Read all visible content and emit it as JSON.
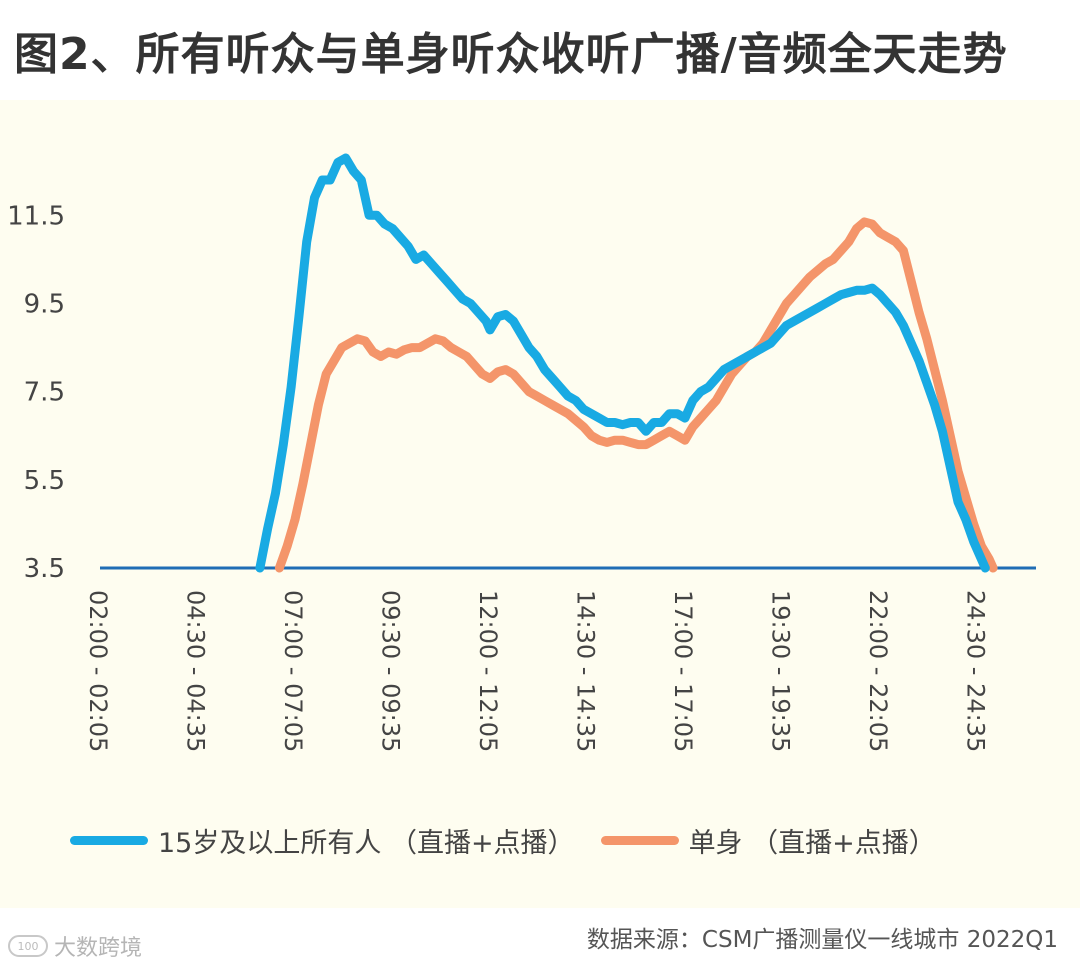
{
  "chart_data": {
    "type": "line",
    "title": "图2、所有听众与单身听众收听广播/音频全天走势",
    "xlabel": "",
    "ylabel": "",
    "ylim": [
      3.5,
      12.8
    ],
    "yticks": [
      "11.5",
      "9.5",
      "7.5",
      "5.5",
      "3.5"
    ],
    "ytick_values": [
      11.5,
      9.5,
      7.5,
      5.5,
      3.5
    ],
    "x_range": [
      2.0,
      26.0
    ],
    "x_tick_labels": [
      "02:00 - 02:05",
      "04:30 - 04:35",
      "07:00 - 07:05",
      "09:30 - 09:35",
      "12:00 - 12:05",
      "14:30 - 14:35",
      "17:00 - 17:05",
      "19:30 - 19:35",
      "22:00 - 22:05",
      "24:30 - 24:35"
    ],
    "x_tick_values": [
      2.0,
      4.5,
      7.0,
      9.5,
      12.0,
      14.5,
      17.0,
      19.5,
      22.0,
      24.5
    ],
    "series": [
      {
        "name": "15岁及以上所有人 （直播+点播）",
        "color": "#19aae3",
        "points": [
          [
            6.1,
            3.5
          ],
          [
            6.3,
            4.4
          ],
          [
            6.5,
            5.2
          ],
          [
            6.7,
            6.3
          ],
          [
            6.9,
            7.6
          ],
          [
            7.1,
            9.2
          ],
          [
            7.3,
            10.9
          ],
          [
            7.5,
            11.9
          ],
          [
            7.7,
            12.3
          ],
          [
            7.9,
            12.3
          ],
          [
            8.1,
            12.7
          ],
          [
            8.3,
            12.8
          ],
          [
            8.5,
            12.5
          ],
          [
            8.7,
            12.3
          ],
          [
            8.9,
            11.5
          ],
          [
            9.1,
            11.5
          ],
          [
            9.3,
            11.3
          ],
          [
            9.5,
            11.2
          ],
          [
            9.7,
            11.0
          ],
          [
            9.9,
            10.8
          ],
          [
            10.1,
            10.5
          ],
          [
            10.3,
            10.6
          ],
          [
            10.5,
            10.4
          ],
          [
            10.7,
            10.2
          ],
          [
            10.9,
            10.0
          ],
          [
            11.1,
            9.8
          ],
          [
            11.3,
            9.6
          ],
          [
            11.5,
            9.5
          ],
          [
            11.7,
            9.3
          ],
          [
            11.9,
            9.1
          ],
          [
            12.0,
            8.9
          ],
          [
            12.2,
            9.2
          ],
          [
            12.4,
            9.25
          ],
          [
            12.6,
            9.1
          ],
          [
            12.8,
            8.8
          ],
          [
            13.0,
            8.5
          ],
          [
            13.2,
            8.3
          ],
          [
            13.4,
            8.0
          ],
          [
            13.6,
            7.8
          ],
          [
            13.8,
            7.6
          ],
          [
            14.0,
            7.4
          ],
          [
            14.2,
            7.3
          ],
          [
            14.4,
            7.1
          ],
          [
            14.6,
            7.0
          ],
          [
            14.8,
            6.9
          ],
          [
            15.0,
            6.8
          ],
          [
            15.2,
            6.8
          ],
          [
            15.4,
            6.75
          ],
          [
            15.6,
            6.8
          ],
          [
            15.8,
            6.8
          ],
          [
            16.0,
            6.6
          ],
          [
            16.2,
            6.8
          ],
          [
            16.4,
            6.8
          ],
          [
            16.6,
            7.0
          ],
          [
            16.8,
            7.0
          ],
          [
            17.0,
            6.9
          ],
          [
            17.2,
            7.3
          ],
          [
            17.4,
            7.5
          ],
          [
            17.6,
            7.6
          ],
          [
            17.8,
            7.8
          ],
          [
            18.0,
            8.0
          ],
          [
            18.2,
            8.1
          ],
          [
            18.4,
            8.2
          ],
          [
            18.6,
            8.3
          ],
          [
            18.8,
            8.4
          ],
          [
            19.0,
            8.5
          ],
          [
            19.2,
            8.6
          ],
          [
            19.4,
            8.8
          ],
          [
            19.6,
            9.0
          ],
          [
            19.8,
            9.1
          ],
          [
            20.0,
            9.2
          ],
          [
            20.2,
            9.3
          ],
          [
            20.4,
            9.4
          ],
          [
            20.6,
            9.5
          ],
          [
            20.8,
            9.6
          ],
          [
            21.0,
            9.7
          ],
          [
            21.2,
            9.75
          ],
          [
            21.4,
            9.8
          ],
          [
            21.6,
            9.8
          ],
          [
            21.8,
            9.85
          ],
          [
            22.0,
            9.7
          ],
          [
            22.2,
            9.5
          ],
          [
            22.4,
            9.3
          ],
          [
            22.6,
            9.0
          ],
          [
            22.8,
            8.6
          ],
          [
            23.0,
            8.2
          ],
          [
            23.2,
            7.7
          ],
          [
            23.4,
            7.2
          ],
          [
            23.6,
            6.6
          ],
          [
            23.8,
            5.8
          ],
          [
            24.0,
            5.0
          ],
          [
            24.2,
            4.6
          ],
          [
            24.4,
            4.1
          ],
          [
            24.6,
            3.7
          ],
          [
            24.7,
            3.5
          ]
        ]
      },
      {
        "name": "单身 （直播+点播）",
        "color": "#f4956a",
        "points": [
          [
            6.6,
            3.5
          ],
          [
            6.8,
            4.0
          ],
          [
            7.0,
            4.6
          ],
          [
            7.2,
            5.4
          ],
          [
            7.4,
            6.3
          ],
          [
            7.6,
            7.2
          ],
          [
            7.8,
            7.9
          ],
          [
            8.0,
            8.2
          ],
          [
            8.2,
            8.5
          ],
          [
            8.4,
            8.6
          ],
          [
            8.6,
            8.7
          ],
          [
            8.8,
            8.65
          ],
          [
            9.0,
            8.4
          ],
          [
            9.2,
            8.3
          ],
          [
            9.4,
            8.4
          ],
          [
            9.6,
            8.35
          ],
          [
            9.8,
            8.45
          ],
          [
            10.0,
            8.5
          ],
          [
            10.2,
            8.5
          ],
          [
            10.4,
            8.6
          ],
          [
            10.6,
            8.7
          ],
          [
            10.8,
            8.65
          ],
          [
            11.0,
            8.5
          ],
          [
            11.2,
            8.4
          ],
          [
            11.4,
            8.3
          ],
          [
            11.6,
            8.1
          ],
          [
            11.8,
            7.9
          ],
          [
            12.0,
            7.8
          ],
          [
            12.2,
            7.95
          ],
          [
            12.4,
            8.0
          ],
          [
            12.6,
            7.9
          ],
          [
            12.8,
            7.7
          ],
          [
            13.0,
            7.5
          ],
          [
            13.2,
            7.4
          ],
          [
            13.4,
            7.3
          ],
          [
            13.6,
            7.2
          ],
          [
            13.8,
            7.1
          ],
          [
            14.0,
            7.0
          ],
          [
            14.2,
            6.85
          ],
          [
            14.4,
            6.7
          ],
          [
            14.6,
            6.5
          ],
          [
            14.8,
            6.4
          ],
          [
            15.0,
            6.35
          ],
          [
            15.2,
            6.4
          ],
          [
            15.4,
            6.4
          ],
          [
            15.6,
            6.35
          ],
          [
            15.8,
            6.3
          ],
          [
            16.0,
            6.3
          ],
          [
            16.2,
            6.4
          ],
          [
            16.4,
            6.5
          ],
          [
            16.6,
            6.6
          ],
          [
            16.8,
            6.5
          ],
          [
            17.0,
            6.4
          ],
          [
            17.2,
            6.7
          ],
          [
            17.4,
            6.9
          ],
          [
            17.6,
            7.1
          ],
          [
            17.8,
            7.3
          ],
          [
            18.0,
            7.6
          ],
          [
            18.2,
            7.9
          ],
          [
            18.4,
            8.1
          ],
          [
            18.6,
            8.3
          ],
          [
            18.8,
            8.4
          ],
          [
            19.0,
            8.6
          ],
          [
            19.2,
            8.9
          ],
          [
            19.4,
            9.2
          ],
          [
            19.6,
            9.5
          ],
          [
            19.8,
            9.7
          ],
          [
            20.0,
            9.9
          ],
          [
            20.2,
            10.1
          ],
          [
            20.4,
            10.25
          ],
          [
            20.6,
            10.4
          ],
          [
            20.8,
            10.5
          ],
          [
            21.0,
            10.7
          ],
          [
            21.2,
            10.9
          ],
          [
            21.4,
            11.2
          ],
          [
            21.6,
            11.35
          ],
          [
            21.8,
            11.3
          ],
          [
            22.0,
            11.1
          ],
          [
            22.2,
            11.0
          ],
          [
            22.4,
            10.9
          ],
          [
            22.6,
            10.7
          ],
          [
            22.8,
            10.0
          ],
          [
            23.0,
            9.3
          ],
          [
            23.2,
            8.7
          ],
          [
            23.4,
            8.0
          ],
          [
            23.6,
            7.3
          ],
          [
            23.8,
            6.5
          ],
          [
            24.0,
            5.7
          ],
          [
            24.2,
            5.1
          ],
          [
            24.4,
            4.5
          ],
          [
            24.6,
            4.0
          ],
          [
            24.8,
            3.7
          ],
          [
            24.9,
            3.5
          ]
        ]
      }
    ]
  },
  "legend": {
    "series1": "15岁及以上所有人 （直播+点播）",
    "series2": "单身 （直播+点播）"
  },
  "source": "数据来源：CSM广播测量仪一线城市  2022Q1",
  "watermark": {
    "icon_text": "100",
    "text": "大数跨境"
  },
  "colors": {
    "series1": "#19aae3",
    "series2": "#f4956a",
    "baseline": "#1f6db5",
    "plot_bg": "#fefdf0"
  }
}
